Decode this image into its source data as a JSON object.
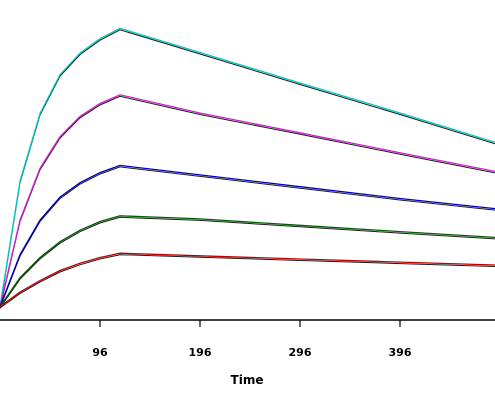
{
  "chart_data": {
    "type": "line",
    "title": "",
    "xlabel": "Time",
    "ylabel": "",
    "xlim": [
      0,
      495
    ],
    "ylim": [
      0,
      100
    ],
    "grid": false,
    "x_ticks": [
      96,
      196,
      296,
      396
    ],
    "series": [
      {
        "color": "#00c8c8",
        "x": [
          0,
          20,
          40,
          60,
          80,
          100,
          120,
          200,
          300,
          400,
          495
        ],
        "y": [
          0,
          43.5,
          67,
          80.5,
          88,
          93,
          96.6,
          88.2,
          77.6,
          67.2,
          57.0
        ]
      },
      {
        "color": "#d020d0",
        "x": [
          0,
          20,
          40,
          60,
          80,
          100,
          120,
          200,
          300,
          400,
          495
        ],
        "y": [
          0,
          30,
          48,
          59,
          66,
          70.5,
          73.5,
          67.2,
          60.3,
          53.4,
          46.9
        ]
      },
      {
        "color": "#0000c0",
        "x": [
          0,
          20,
          40,
          60,
          80,
          100,
          120,
          200,
          300,
          400,
          495
        ],
        "y": [
          0,
          18,
          30,
          38,
          43,
          46.5,
          49.0,
          45.7,
          41.6,
          37.5,
          34.0
        ]
      },
      {
        "color": "#006000",
        "x": [
          0,
          20,
          40,
          60,
          80,
          100,
          120,
          200,
          300,
          400,
          495
        ],
        "y": [
          0,
          10,
          17,
          22.5,
          26.5,
          29.5,
          31.5,
          30.4,
          28.2,
          26.0,
          24.0
        ]
      },
      {
        "color": "#c00000",
        "x": [
          0,
          20,
          40,
          60,
          80,
          100,
          120,
          200,
          300,
          400,
          495
        ],
        "y": [
          0,
          5,
          9,
          12.5,
          15.0,
          17.0,
          18.5,
          17.6,
          16.5,
          15.4,
          14.4
        ]
      }
    ]
  }
}
